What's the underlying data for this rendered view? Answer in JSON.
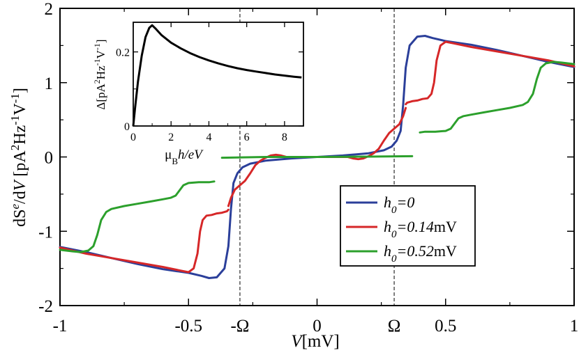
{
  "chart_data": [
    {
      "id": "main",
      "type": "line",
      "title": "",
      "xlabel": "V[mV]",
      "ylabel": "dS^e/dV [pA^2 Hz^-1 V^-1]",
      "xlim": [
        -1,
        1
      ],
      "ylim": [
        -2,
        2
      ],
      "x_ticks": [
        {
          "value": -1,
          "label": "-1"
        },
        {
          "value": -0.5,
          "label": "-0.5"
        },
        {
          "value": -0.3,
          "label": "-Ω"
        },
        {
          "value": 0,
          "label": "0"
        },
        {
          "value": 0.3,
          "label": "Ω"
        },
        {
          "value": 0.5,
          "label": "0.5"
        },
        {
          "value": 1,
          "label": "1"
        }
      ],
      "y_ticks": [
        {
          "value": -2,
          "label": "-2"
        },
        {
          "value": -1,
          "label": "-1"
        },
        {
          "value": 0,
          "label": "0"
        },
        {
          "value": 1,
          "label": "1"
        },
        {
          "value": 2,
          "label": "2"
        }
      ],
      "vlines": [
        -0.3,
        0.3
      ],
      "legend": {
        "position": "center-right",
        "entries": [
          {
            "base": "h",
            "sub": "0",
            "rest": "=0",
            "unit": "",
            "color": "#2b3f9a"
          },
          {
            "base": "h",
            "sub": "0",
            "rest": "=0.14",
            "unit": "mV",
            "color": "#d62728"
          },
          {
            "base": "h",
            "sub": "0",
            "rest": "=0.52",
            "unit": "mV",
            "color": "#2ca02c"
          }
        ]
      },
      "series": [
        {
          "name": "h0=0",
          "color": "#2b3f9a",
          "segments": [
            [
              [
                -1,
                -1.21
              ],
              [
                -0.9,
                -1.28
              ],
              [
                -0.8,
                -1.36
              ],
              [
                -0.7,
                -1.44
              ],
              [
                -0.6,
                -1.51
              ],
              [
                -0.5,
                -1.56
              ],
              [
                -0.45,
                -1.6
              ],
              [
                -0.42,
                -1.63
              ],
              [
                -0.39,
                -1.62
              ],
              [
                -0.36,
                -1.5
              ],
              [
                -0.345,
                -1.2
              ],
              [
                -0.335,
                -0.7
              ],
              [
                -0.325,
                -0.35
              ],
              [
                -0.31,
                -0.22
              ],
              [
                -0.29,
                -0.14
              ],
              [
                -0.26,
                -0.09
              ],
              [
                -0.2,
                -0.05
              ],
              [
                -0.1,
                -0.02
              ],
              [
                0,
                0
              ],
              [
                0.1,
                0.02
              ],
              [
                0.2,
                0.05
              ],
              [
                0.26,
                0.09
              ],
              [
                0.29,
                0.14
              ],
              [
                0.31,
                0.22
              ],
              [
                0.325,
                0.35
              ],
              [
                0.335,
                0.7
              ],
              [
                0.345,
                1.2
              ],
              [
                0.36,
                1.5
              ],
              [
                0.39,
                1.62
              ],
              [
                0.42,
                1.63
              ],
              [
                0.45,
                1.6
              ],
              [
                0.5,
                1.56
              ],
              [
                0.6,
                1.51
              ],
              [
                0.7,
                1.44
              ],
              [
                0.8,
                1.36
              ],
              [
                0.9,
                1.28
              ],
              [
                1,
                1.21
              ]
            ]
          ]
        },
        {
          "name": "h0=0.14",
          "color": "#d62728",
          "segments": [
            [
              [
                -1,
                -1.22
              ],
              [
                -0.9,
                -1.3
              ],
              [
                -0.8,
                -1.36
              ],
              [
                -0.7,
                -1.42
              ],
              [
                -0.6,
                -1.48
              ],
              [
                -0.53,
                -1.53
              ],
              [
                -0.5,
                -1.55
              ],
              [
                -0.48,
                -1.5
              ],
              [
                -0.465,
                -1.3
              ],
              [
                -0.455,
                -1.0
              ],
              [
                -0.445,
                -0.85
              ],
              [
                -0.43,
                -0.79
              ],
              [
                -0.41,
                -0.78
              ],
              [
                -0.39,
                -0.76
              ],
              [
                -0.37,
                -0.75
              ],
              [
                -0.35,
                -0.73
              ],
              [
                -0.345,
                -0.71
              ]
            ],
            [
              [
                -0.345,
                -0.66
              ],
              [
                -0.335,
                -0.55
              ],
              [
                -0.32,
                -0.44
              ],
              [
                -0.3,
                -0.38
              ],
              [
                -0.28,
                -0.32
              ],
              [
                -0.26,
                -0.22
              ],
              [
                -0.24,
                -0.11
              ],
              [
                -0.22,
                -0.05
              ],
              [
                -0.2,
                -0.01
              ],
              [
                -0.18,
                0.02
              ],
              [
                -0.16,
                0.03
              ],
              [
                -0.14,
                0.02
              ],
              [
                -0.12,
                0.0
              ],
              [
                -0.1,
                0.0
              ],
              [
                0,
                0
              ],
              [
                0.1,
                0.0
              ],
              [
                0.12,
                0.0
              ],
              [
                0.14,
                -0.02
              ],
              [
                0.16,
                -0.03
              ],
              [
                0.18,
                -0.02
              ],
              [
                0.2,
                0.01
              ],
              [
                0.22,
                0.05
              ],
              [
                0.24,
                0.11
              ],
              [
                0.26,
                0.22
              ],
              [
                0.28,
                0.32
              ],
              [
                0.3,
                0.38
              ],
              [
                0.32,
                0.44
              ],
              [
                0.335,
                0.55
              ],
              [
                0.345,
                0.66
              ]
            ],
            [
              [
                0.345,
                0.71
              ],
              [
                0.35,
                0.73
              ],
              [
                0.37,
                0.75
              ],
              [
                0.39,
                0.76
              ],
              [
                0.41,
                0.78
              ],
              [
                0.43,
                0.79
              ],
              [
                0.445,
                0.85
              ],
              [
                0.455,
                1.0
              ],
              [
                0.465,
                1.3
              ],
              [
                0.48,
                1.5
              ],
              [
                0.5,
                1.55
              ],
              [
                0.53,
                1.53
              ],
              [
                0.6,
                1.48
              ],
              [
                0.7,
                1.42
              ],
              [
                0.8,
                1.36
              ],
              [
                0.9,
                1.3
              ],
              [
                1,
                1.22
              ]
            ]
          ]
        },
        {
          "name": "h0=0.52",
          "color": "#2ca02c",
          "segments": [
            [
              [
                -1,
                -1.25
              ],
              [
                -0.95,
                -1.27
              ],
              [
                -0.92,
                -1.28
              ],
              [
                -0.89,
                -1.26
              ],
              [
                -0.87,
                -1.2
              ],
              [
                -0.855,
                -1.05
              ],
              [
                -0.84,
                -0.85
              ],
              [
                -0.82,
                -0.74
              ],
              [
                -0.8,
                -0.7
              ],
              [
                -0.75,
                -0.66
              ],
              [
                -0.7,
                -0.63
              ],
              [
                -0.65,
                -0.6
              ],
              [
                -0.6,
                -0.57
              ],
              [
                -0.57,
                -0.55
              ],
              [
                -0.55,
                -0.52
              ],
              [
                -0.535,
                -0.45
              ],
              [
                -0.52,
                -0.38
              ],
              [
                -0.5,
                -0.35
              ],
              [
                -0.46,
                -0.34
              ],
              [
                -0.42,
                -0.34
              ],
              [
                -0.4,
                -0.33
              ]
            ],
            [
              [
                -0.37,
                -0.01
              ],
              [
                -0.2,
                0.0
              ],
              [
                0,
                0.0
              ],
              [
                0.2,
                0.005
              ],
              [
                0.37,
                0.01
              ]
            ],
            [
              [
                0.4,
                0.33
              ],
              [
                0.42,
                0.34
              ],
              [
                0.46,
                0.34
              ],
              [
                0.5,
                0.35
              ],
              [
                0.52,
                0.38
              ],
              [
                0.535,
                0.45
              ],
              [
                0.55,
                0.52
              ],
              [
                0.57,
                0.55
              ],
              [
                0.6,
                0.57
              ],
              [
                0.65,
                0.6
              ],
              [
                0.7,
                0.63
              ],
              [
                0.75,
                0.66
              ],
              [
                0.8,
                0.7
              ],
              [
                0.82,
                0.74
              ],
              [
                0.84,
                0.85
              ],
              [
                0.855,
                1.05
              ],
              [
                0.87,
                1.2
              ],
              [
                0.89,
                1.26
              ],
              [
                0.92,
                1.28
              ],
              [
                0.95,
                1.27
              ],
              [
                1,
                1.25
              ]
            ]
          ]
        }
      ]
    },
    {
      "id": "inset",
      "type": "line",
      "title": "",
      "xlabel": "μBh/eV",
      "xlabel_parts": {
        "mu": "μ",
        "sub": "B",
        "rest": "h/eV"
      },
      "ylabel": "Δ[pA^2Hz^-1V^-1]",
      "xlim": [
        0,
        9
      ],
      "ylim": [
        0,
        0.28
      ],
      "x_ticks": [
        {
          "value": 0,
          "label": "0"
        },
        {
          "value": 2,
          "label": "2"
        },
        {
          "value": 4,
          "label": "4"
        },
        {
          "value": 6,
          "label": "6"
        },
        {
          "value": 8,
          "label": "8"
        }
      ],
      "y_ticks": [
        {
          "value": 0,
          "label": "0"
        },
        {
          "value": 0.2,
          "label": "0.2"
        }
      ],
      "series": [
        {
          "name": "Delta",
          "color": "#000000",
          "points": [
            [
              0,
              0
            ],
            [
              0.1,
              0.05
            ],
            [
              0.25,
              0.12
            ],
            [
              0.45,
              0.19
            ],
            [
              0.65,
              0.24
            ],
            [
              0.85,
              0.265
            ],
            [
              1.0,
              0.272
            ],
            [
              1.2,
              0.262
            ],
            [
              1.5,
              0.245
            ],
            [
              2,
              0.225
            ],
            [
              2.5,
              0.21
            ],
            [
              3,
              0.197
            ],
            [
              3.5,
              0.186
            ],
            [
              4,
              0.177
            ],
            [
              4.5,
              0.169
            ],
            [
              5,
              0.162
            ],
            [
              5.5,
              0.156
            ],
            [
              6,
              0.151
            ],
            [
              6.5,
              0.147
            ],
            [
              7,
              0.143
            ],
            [
              7.5,
              0.139
            ],
            [
              8,
              0.136
            ],
            [
              8.5,
              0.133
            ],
            [
              8.9,
              0.131
            ]
          ]
        }
      ]
    }
  ]
}
